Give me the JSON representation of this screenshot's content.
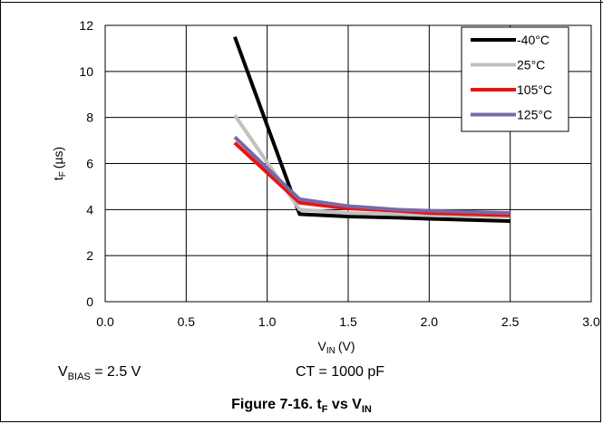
{
  "chart_data": {
    "type": "line",
    "ylabel_main": "t",
    "ylabel_sub": "F",
    "ylabel_unit": "(µs)",
    "xlabel_main": "V",
    "xlabel_sub": "IN",
    "xlabel_unit": "(V)",
    "xlim": [
      0,
      3
    ],
    "ylim": [
      0,
      12
    ],
    "x_ticks": [
      0,
      0.5,
      1,
      1.5,
      2,
      2.5,
      3
    ],
    "x_tick_labels": [
      "0.0",
      "0.5",
      "1.0",
      "1.5",
      "2.0",
      "2.5",
      "3.0"
    ],
    "y_ticks": [
      0,
      2,
      4,
      6,
      8,
      10,
      12
    ],
    "y_tick_labels": [
      "0",
      "2",
      "4",
      "6",
      "8",
      "10",
      "12"
    ],
    "grid": true,
    "legend_position": "top-right",
    "series": [
      {
        "name": "-40°C",
        "color": "#000000",
        "x": [
          0.8,
          1.2,
          1.5,
          1.8,
          2.0,
          2.5
        ],
        "y": [
          11.5,
          3.8,
          3.7,
          3.65,
          3.6,
          3.5
        ]
      },
      {
        "name": "25°C",
        "color": "#c0c0c0",
        "x": [
          0.8,
          1.2,
          1.5,
          1.8,
          2.0,
          2.5
        ],
        "y": [
          8.1,
          4.0,
          3.85,
          3.8,
          3.75,
          3.7
        ]
      },
      {
        "name": "105°C",
        "color": "#ee1111",
        "x": [
          0.8,
          1.2,
          1.5,
          1.8,
          2.0,
          2.5
        ],
        "y": [
          6.9,
          4.3,
          4.05,
          3.95,
          3.85,
          3.75
        ]
      },
      {
        "name": "125°C",
        "color": "#7a68a6",
        "x": [
          0.8,
          1.2,
          1.5,
          1.8,
          2.0,
          2.5
        ],
        "y": [
          7.15,
          4.45,
          4.15,
          4.0,
          3.95,
          3.85
        ]
      }
    ]
  },
  "conditions": {
    "vbias_main": "V",
    "vbias_sub": "BIAS",
    "vbias_value": " = 2.5 V",
    "ct": "CT = 1000 pF"
  },
  "caption": {
    "prefix": "Figure 7-16. t",
    "sub1": "F",
    "middle": " vs V",
    "sub2": "IN"
  }
}
